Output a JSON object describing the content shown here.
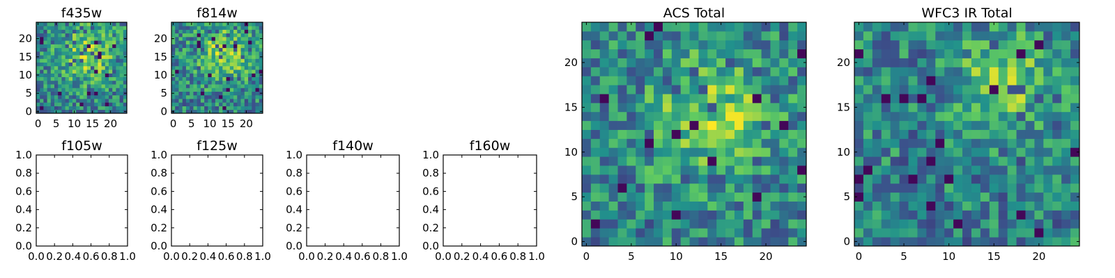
{
  "figure": {
    "colormap": [
      "#440154",
      "#3b528b",
      "#21918c",
      "#5ec962",
      "#fde725"
    ]
  },
  "chart_data": [
    {
      "type": "heatmap",
      "title": "f435w",
      "grid_size": 25,
      "seed": 11,
      "xlim": [
        -0.5,
        24.5
      ],
      "ylim": [
        -0.5,
        24.5
      ],
      "xticks": [
        0,
        5,
        10,
        15,
        20
      ],
      "yticks": [
        0,
        5,
        10,
        15,
        20
      ],
      "values": "25x25 noise image (intensity values, not legible)"
    },
    {
      "type": "heatmap",
      "title": "f814w",
      "grid_size": 25,
      "seed": 23,
      "xlim": [
        -0.5,
        24.5
      ],
      "ylim": [
        -0.5,
        24.5
      ],
      "xticks": [
        0,
        5,
        10,
        15,
        20
      ],
      "yticks": [
        0,
        5,
        10,
        15,
        20
      ],
      "values": "25x25 noise image (intensity values, not legible)"
    },
    {
      "type": "scatter",
      "title": "f105w",
      "xlim": [
        0,
        1
      ],
      "ylim": [
        0,
        1
      ],
      "xticks": [
        "0.0",
        "0.2",
        "0.4",
        "0.6",
        "0.8",
        "1.0"
      ],
      "yticks": [
        "0.0",
        "0.2",
        "0.4",
        "0.6",
        "0.8",
        "1.0"
      ],
      "series": []
    },
    {
      "type": "scatter",
      "title": "f125w",
      "xlim": [
        0,
        1
      ],
      "ylim": [
        0,
        1
      ],
      "xticks": [
        "0.0",
        "0.2",
        "0.4",
        "0.6",
        "0.8",
        "1.0"
      ],
      "yticks": [
        "0.0",
        "0.2",
        "0.4",
        "0.6",
        "0.8",
        "1.0"
      ],
      "series": []
    },
    {
      "type": "scatter",
      "title": "f140w",
      "xlim": [
        0,
        1
      ],
      "ylim": [
        0,
        1
      ],
      "xticks": [
        "0.0",
        "0.2",
        "0.4",
        "0.6",
        "0.8",
        "1.0"
      ],
      "yticks": [
        "0.0",
        "0.2",
        "0.4",
        "0.6",
        "0.8",
        "1.0"
      ],
      "series": []
    },
    {
      "type": "scatter",
      "title": "f160w",
      "xlim": [
        0,
        1
      ],
      "ylim": [
        0,
        1
      ],
      "xticks": [
        "0.0",
        "0.2",
        "0.4",
        "0.6",
        "0.8",
        "1.0"
      ],
      "yticks": [
        "0.0",
        "0.2",
        "0.4",
        "0.6",
        "0.8",
        "1.0"
      ],
      "series": []
    },
    {
      "type": "heatmap",
      "title": "ACS Total",
      "grid_size": 25,
      "seed": 37,
      "xlim": [
        -0.5,
        24.5
      ],
      "ylim": [
        -0.5,
        24.5
      ],
      "xticks": [
        0,
        5,
        10,
        15,
        20
      ],
      "yticks": [
        0,
        5,
        10,
        15,
        20
      ],
      "values": "25x25 noise image with bright region near center (intensity values, not legible)"
    },
    {
      "type": "heatmap",
      "title": "WFC3 IR Total",
      "grid_size": 25,
      "seed": 53,
      "xlim": [
        -0.5,
        24.5
      ],
      "ylim": [
        -0.5,
        24.5
      ],
      "xticks": [
        0,
        5,
        10,
        15,
        20
      ],
      "yticks": [
        0,
        5,
        10,
        15,
        20
      ],
      "values": "25x25 noise image with bright source near (16,20) (intensity values, not legible)"
    }
  ]
}
